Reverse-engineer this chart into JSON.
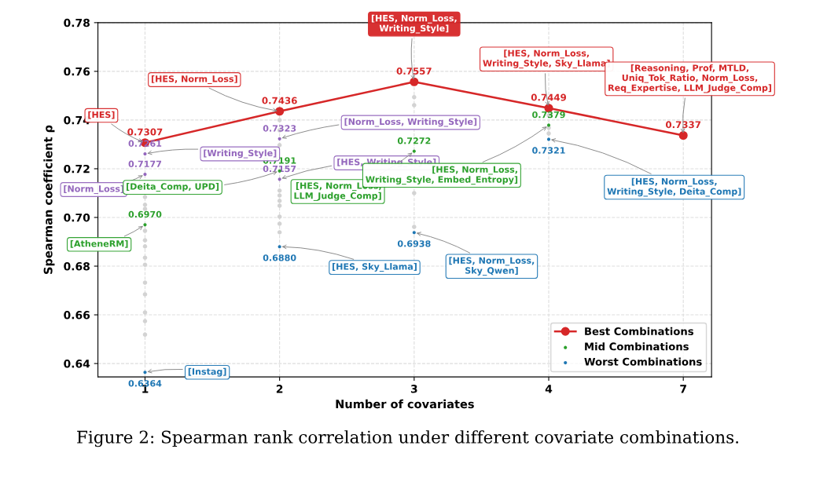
{
  "chart_data": {
    "type": "scatter",
    "xlabel": "Number of covariates",
    "ylabel": "Spearman coefficient ρ",
    "categories": [
      "1",
      "2",
      "3",
      "4",
      "7"
    ],
    "ylim": [
      0.6345,
      0.78
    ],
    "yticks": [
      0.64,
      0.66,
      0.68,
      {
        "value": 0.7,
        "label": "0.70"
      },
      0.72,
      0.74,
      0.76,
      0.78
    ],
    "grid": true,
    "legend": "bottom right",
    "series": [
      {
        "color": "#d3d3d3",
        "values": [
          0.7084,
          0.74,
          0.7494,
          0.7419,
          null
        ]
      },
      {
        "color": "#d3d3d3",
        "values": [
          0.7052,
          0.7358,
          0.7461,
          0.7368,
          null
        ]
      },
      {
        "color": "#d3d3d3",
        "values": [
          0.7035,
          0.7297,
          null,
          0.7345,
          null
        ]
      },
      {
        "color": "#d3d3d3",
        "values": [
          0.6945,
          null,
          0.71,
          null,
          null
        ]
      },
      {
        "color": "#d3d3d3",
        "values": [
          0.6906,
          0.711,
          0.6961,
          null,
          null
        ]
      },
      {
        "color": "#d3d3d3",
        "values": [
          0.6881,
          0.709,
          null,
          null,
          null
        ]
      },
      {
        "color": "#d3d3d3",
        "values": [
          0.6835,
          0.7068,
          null,
          null,
          null
        ]
      },
      {
        "color": "#d3d3d3",
        "values": [
          0.6806,
          0.7048,
          null,
          null,
          null
        ]
      },
      {
        "color": "#d3d3d3",
        "values": [
          0.6732,
          0.7003,
          null,
          null,
          null
        ]
      },
      {
        "color": "#d3d3d3",
        "values": [
          0.6684,
          0.6974,
          null,
          null,
          null
        ]
      },
      {
        "color": "#d3d3d3",
        "values": [
          0.661,
          0.6939,
          null,
          null,
          null
        ]
      },
      {
        "color": "#d3d3d3",
        "values": [
          0.6574,
          null,
          null,
          null,
          null
        ]
      },
      {
        "color": "#d3d3d3",
        "values": [
          0.6519,
          null,
          null,
          null,
          null
        ]
      },
      {
        "color": "#9467bd",
        "values": [
          0.7261,
          0.7323,
          null,
          null,
          null
        ],
        "value_labels": [
          "0.7261",
          "0.7323",
          null,
          null,
          null
        ]
      },
      {
        "color": "#9467bd",
        "values": [
          0.7177,
          0.7157,
          null,
          null,
          null
        ],
        "value_labels": [
          "0.7177",
          "0.7157",
          null,
          null,
          null
        ]
      },
      {
        "type": "line",
        "name": "Best Combinations",
        "color": "#d62728",
        "marker": "circle",
        "values": [
          0.7307,
          0.7436,
          0.7557,
          0.7449,
          0.7337
        ],
        "value_labels": [
          "0.7307",
          "0.7436",
          "0.7557",
          "0.7449",
          "0.7337"
        ]
      },
      {
        "name": "Mid Combinations",
        "color": "#2ca02c",
        "values": [
          0.697,
          0.7191,
          0.7272,
          0.7379,
          null
        ],
        "value_labels": [
          "0.6970",
          "0.7191",
          "0.7272",
          "0.7379",
          null
        ]
      },
      {
        "name": "Worst Combinations",
        "color": "#1f77b4",
        "values": [
          0.6364,
          0.688,
          0.6938,
          0.7321,
          null
        ],
        "value_labels": [
          "0.6364",
          "0.6880",
          "0.6938",
          "0.7321",
          null
        ]
      }
    ],
    "annotations": [
      {
        "text": "[HES]",
        "x": "1",
        "y": 0.7307
      },
      {
        "text": "[HES, Norm_Loss]",
        "x": "2",
        "y": 0.7436
      },
      {
        "text": "[HES, Norm_Loss,\nWriting_Style]",
        "x": "3",
        "y": 0.7557
      },
      {
        "text": "[HES, Norm_Loss,\nWriting_Style, Sky_Llama]",
        "x": "4",
        "y": 0.7449
      },
      {
        "text": "[Reasoning, Prof, MTLD,\nUniq_Tok_Ratio, Norm_Loss,\nReq_Expertise, LLM_Judge_Comp]",
        "x": "7",
        "y": 0.7337
      },
      {
        "text": "[Writing_Style]",
        "x": "1",
        "y": 0.7261
      },
      {
        "text": "[Norm_Loss]",
        "x": "1",
        "y": 0.7177
      },
      {
        "text": "[Norm_Loss, Writing_Style]",
        "x": "2",
        "y": 0.7323
      },
      {
        "text": "[HES, Writing_Style]",
        "x": "2",
        "y": 0.7157
      },
      {
        "text": "[AtheneRM]",
        "x": "1",
        "y": 0.697
      },
      {
        "text": "[Deita_Comp, UPD]",
        "x": "2",
        "y": 0.7191
      },
      {
        "text": "[HES, Norm_Loss,\nLLM_Judge_Comp]",
        "x": "3",
        "y": 0.7272
      },
      {
        "text": "[HES, Norm_Loss,\nWriting_Style, Embed_Entropy]",
        "x": "4",
        "y": 0.7379
      },
      {
        "text": "[Instag]",
        "x": "1",
        "y": 0.6364
      },
      {
        "text": "[HES, Sky_Llama]",
        "x": "2",
        "y": 0.688
      },
      {
        "text": "[HES, Norm_Loss,\nSky_Qwen]",
        "x": "3",
        "y": 0.6938
      },
      {
        "text": "[HES, Norm_Loss,\nWriting_Style, Deita_Comp]",
        "x": "4",
        "y": 0.7321
      },
      "Figure 2: Spearman rank correlation under different covariate combinations."
    ]
  }
}
